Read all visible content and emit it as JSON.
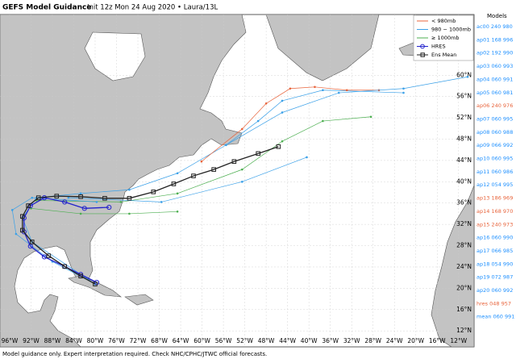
{
  "header": {
    "title": "GEFS Model Guidance",
    "subtitle": "Init 12z Mon 24 Aug 2020 • Laura/13L"
  },
  "map": {
    "xlim": [
      -97.8,
      -9.1
    ],
    "ylim": [
      9,
      71.4
    ],
    "xticks": [
      {
        "value": -96,
        "label": "96°W"
      },
      {
        "value": -92,
        "label": "92°W"
      },
      {
        "value": -88,
        "label": "88°W"
      },
      {
        "value": -84,
        "label": "84°W"
      },
      {
        "value": -80,
        "label": "80°W"
      },
      {
        "value": -76,
        "label": "76°W"
      },
      {
        "value": -72,
        "label": "72°W"
      },
      {
        "value": -68,
        "label": "68°W"
      },
      {
        "value": -64,
        "label": "64°W"
      },
      {
        "value": -60,
        "label": "60°W"
      },
      {
        "value": -56,
        "label": "56°W"
      },
      {
        "value": -52,
        "label": "52°W"
      },
      {
        "value": -48,
        "label": "48°W"
      },
      {
        "value": -44,
        "label": "44°W"
      },
      {
        "value": -40,
        "label": "40°W"
      },
      {
        "value": -36,
        "label": "36°W"
      },
      {
        "value": -32,
        "label": "32°W"
      },
      {
        "value": -28,
        "label": "28°W"
      },
      {
        "value": -24,
        "label": "24°W"
      },
      {
        "value": -20,
        "label": "20°W"
      },
      {
        "value": -16,
        "label": "16°W"
      },
      {
        "value": -12,
        "label": "12°W"
      }
    ],
    "yticks": [
      {
        "value": 60,
        "label": "60°N"
      },
      {
        "value": 56,
        "label": "56°N"
      },
      {
        "value": 52,
        "label": "52°N"
      },
      {
        "value": 48,
        "label": "48°N"
      },
      {
        "value": 44,
        "label": "44°N"
      },
      {
        "value": 40,
        "label": "40°N"
      },
      {
        "value": 36,
        "label": "36°N"
      },
      {
        "value": 32,
        "label": "32°N"
      },
      {
        "value": 28,
        "label": "28°N"
      },
      {
        "value": 24,
        "label": "24°N"
      },
      {
        "value": 20,
        "label": "20°N"
      },
      {
        "value": 16,
        "label": "16°N"
      },
      {
        "value": 12,
        "label": "12°N"
      }
    ],
    "grid": true,
    "legend": [
      {
        "label": "< 980mb",
        "color": "#e8643c",
        "marker": "none"
      },
      {
        "label": "980 − 1000mb",
        "color": "#3aa0e8",
        "marker": "none"
      },
      {
        "label": "≥ 1000mb",
        "color": "#4caf50",
        "marker": "none"
      },
      {
        "label": "HRES",
        "color": "#2222cc",
        "marker": "circle"
      },
      {
        "label": "Ens Mean",
        "color": "#222222",
        "marker": "square"
      }
    ],
    "members": [
      {
        "color": "#3aa0e8",
        "lon": [
          -80.0,
          -91.8,
          -93.6,
          -91.0,
          -82.7,
          -73.6,
          -64.6,
          -55.5,
          -49.5,
          -45.0,
          -37.4,
          -22.3
        ],
        "lat": [
          20.8,
          28.7,
          33.2,
          37.0,
          37.8,
          38.5,
          41.6,
          46.9,
          51.4,
          55.2,
          57.2,
          56.7
        ]
      },
      {
        "color": "#e8643c",
        "lon": [
          -60.1,
          -52.5,
          -48.0,
          -43.5,
          -38.9,
          -32.9,
          -26.9
        ],
        "lat": [
          43.8,
          49.9,
          54.7,
          57.5,
          57.8,
          57.2,
          57.2
        ]
      },
      {
        "color": "#3aa0e8",
        "lon": [
          -55.5,
          -45.0,
          -34.4,
          -22.3,
          -10.3
        ],
        "lat": [
          46.9,
          53.0,
          56.7,
          57.5,
          59.7
        ]
      },
      {
        "color": "#4caf50",
        "lon": [
          -91.0,
          -75.2,
          -64.6,
          -52.5,
          -45.0,
          -37.4,
          -28.4
        ],
        "lat": [
          36.5,
          36.2,
          37.8,
          42.3,
          47.6,
          51.4,
          52.2
        ]
      },
      {
        "color": "#4caf50",
        "lon": [
          -92.0,
          -82.7,
          -73.6,
          -64.6
        ],
        "lat": [
          35.0,
          34.0,
          34.0,
          34.4
        ]
      },
      {
        "color": "#3aa0e8",
        "lon": [
          -85.0,
          -67.6,
          -52.5,
          -40.4
        ],
        "lat": [
          37.0,
          36.2,
          40.0,
          44.6
        ]
      },
      {
        "color": "#3aa0e8",
        "lon": [
          -80.0,
          -88.0,
          -94.8,
          -95.5,
          -91.8,
          -79.7
        ],
        "lat": [
          20.8,
          25.0,
          30.2,
          34.7,
          37.0,
          36.2
        ]
      }
    ],
    "hres": {
      "color": "#2222cc",
      "lon": [
        -79.7,
        -82.7,
        -85.7,
        -89.5,
        -92.1,
        -93.3,
        -93.3,
        -92.1,
        -89.5,
        -85.7,
        -82.0,
        -77.4
      ],
      "lat": [
        21.1,
        22.6,
        24.1,
        25.9,
        27.9,
        30.6,
        33.2,
        35.5,
        37.0,
        36.2,
        35.0,
        35.2
      ]
    },
    "mean": {
      "color": "#222222",
      "lon": [
        -80.0,
        -82.7,
        -85.7,
        -88.7,
        -91.8,
        -93.6,
        -93.6,
        -92.5,
        -90.6,
        -87.2,
        -82.7,
        -78.2,
        -73.6,
        -69.1,
        -65.3,
        -61.6,
        -57.8,
        -54.0,
        -49.5,
        -45.7
      ],
      "lat": [
        20.8,
        22.3,
        24.1,
        26.1,
        28.7,
        30.9,
        33.5,
        35.5,
        37.0,
        37.3,
        37.2,
        36.9,
        36.9,
        38.1,
        39.6,
        41.1,
        42.3,
        43.8,
        45.3,
        46.6
      ]
    }
  },
  "models": {
    "title": "Models",
    "items": [
      {
        "label": "ac00 240 980",
        "color": "#1e90ff"
      },
      {
        "label": "ap01 168 996",
        "color": "#1e90ff"
      },
      {
        "label": "ap02 192 990",
        "color": "#1e90ff"
      },
      {
        "label": "ap03 060 993",
        "color": "#1e90ff"
      },
      {
        "label": "ap04 060 991",
        "color": "#1e90ff"
      },
      {
        "label": "ap05 060 981",
        "color": "#1e90ff"
      },
      {
        "label": "ap06 240 976",
        "color": "#e8643c"
      },
      {
        "label": "ap07 060 995",
        "color": "#1e90ff"
      },
      {
        "label": "ap08 060 988",
        "color": "#1e90ff"
      },
      {
        "label": "ap09 066 992",
        "color": "#1e90ff"
      },
      {
        "label": "ap10 060 995",
        "color": "#1e90ff"
      },
      {
        "label": "ap11 060 986",
        "color": "#1e90ff"
      },
      {
        "label": "ap12 054 995",
        "color": "#1e90ff"
      },
      {
        "label": "ap13 186 969",
        "color": "#e8643c"
      },
      {
        "label": "ap14 168 970",
        "color": "#e8643c"
      },
      {
        "label": "ap15 240 973",
        "color": "#e8643c"
      },
      {
        "label": "ap16 060 990",
        "color": "#1e90ff"
      },
      {
        "label": "ap17 066 985",
        "color": "#1e90ff"
      },
      {
        "label": "ap18 054 990",
        "color": "#1e90ff"
      },
      {
        "label": "ap19 072 987",
        "color": "#1e90ff"
      },
      {
        "label": "ap20 060 992",
        "color": "#1e90ff"
      },
      {
        "label": "hres 048 957",
        "color": "#e8643c"
      },
      {
        "label": "mean 060 991",
        "color": "#1e90ff"
      }
    ]
  },
  "footer": "Model guidance only. Expert interpretation required. Check NHC/CPHC/JTWC official forecasts."
}
